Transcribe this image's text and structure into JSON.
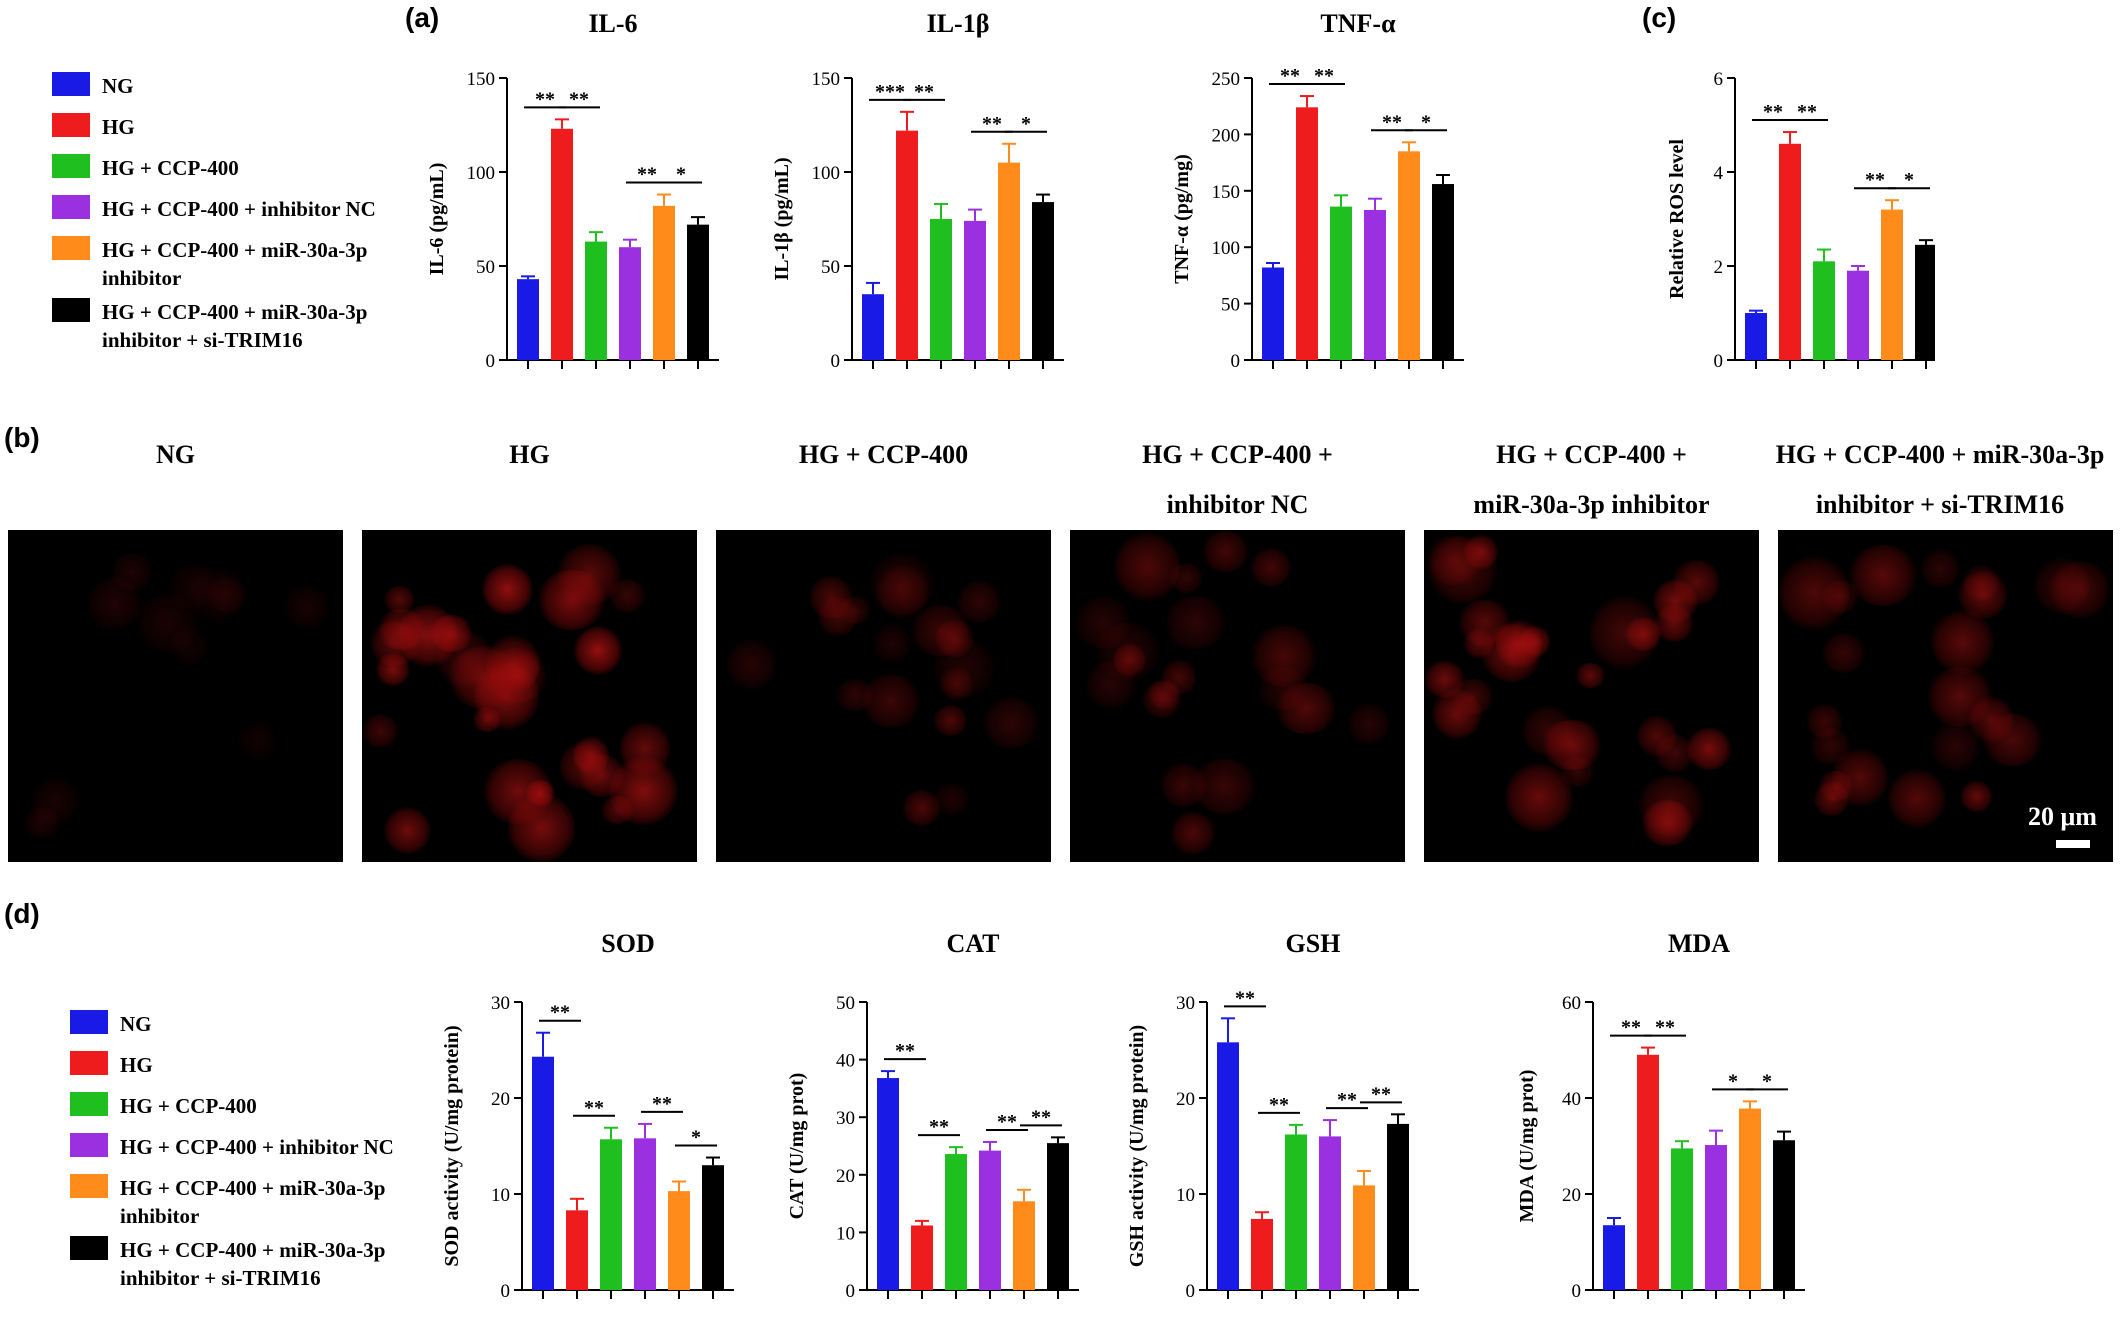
{
  "panel_labels": {
    "a": "(a)",
    "b": "(b)",
    "c": "(c)",
    "d": "(d)"
  },
  "colors": {
    "NG": "#1a1ae6",
    "HG": "#ee1c1c",
    "CCP": "#1fbf1f",
    "NC": "#9b30e0",
    "miR": "#ff8c1a",
    "si": "#000000"
  },
  "legend": {
    "items": [
      {
        "label": "NG",
        "color": "#1a1ae6"
      },
      {
        "label": "HG",
        "color": "#ee1c1c"
      },
      {
        "label": "HG + CCP-400",
        "color": "#1fbf1f"
      },
      {
        "label": "HG + CCP-400 + inhibitor NC",
        "color": "#9b30e0"
      },
      {
        "label": "HG + CCP-400 + miR-30a-3p inhibitor",
        "color": "#ff8c1a"
      },
      {
        "label": "HG + CCP-400 + miR-30a-3p inhibitor + si-TRIM16",
        "color": "#000000"
      }
    ]
  },
  "chart_data": [
    {
      "id": "il6",
      "type": "bar",
      "title": "IL-6",
      "ylabel": "IL-6 (pg/mL)",
      "ylim": [
        0,
        150
      ],
      "yticks": [
        0,
        50,
        100,
        150
      ],
      "values": [
        43,
        123,
        63,
        60,
        82,
        72
      ],
      "errors": [
        1.5,
        5,
        5,
        4,
        6,
        4
      ],
      "sig": [
        {
          "from": 0,
          "to": 1,
          "label": "**"
        },
        {
          "from": 1,
          "to": 2,
          "label": "**"
        },
        {
          "from": 3,
          "to": 4,
          "label": "**"
        },
        {
          "from": 4,
          "to": 5,
          "label": "*"
        }
      ]
    },
    {
      "id": "il1b",
      "type": "bar",
      "title": "IL-1β",
      "ylabel": "IL-1β (pg/mL)",
      "ylim": [
        0,
        150
      ],
      "yticks": [
        0,
        50,
        100,
        150
      ],
      "values": [
        35,
        122,
        75,
        74,
        105,
        84
      ],
      "errors": [
        6,
        10,
        8,
        6,
        10,
        4
      ],
      "sig": [
        {
          "from": 0,
          "to": 1,
          "label": "***"
        },
        {
          "from": 1,
          "to": 2,
          "label": "**"
        },
        {
          "from": 3,
          "to": 4,
          "label": "**"
        },
        {
          "from": 4,
          "to": 5,
          "label": "*"
        }
      ]
    },
    {
      "id": "tnfa",
      "type": "bar",
      "title": "TNF-α",
      "ylabel": "TNF-α (pg/mg)",
      "ylim": [
        0,
        250
      ],
      "yticks": [
        0,
        50,
        100,
        150,
        200,
        250
      ],
      "values": [
        82,
        224,
        136,
        133,
        185,
        156
      ],
      "errors": [
        4,
        10,
        10,
        10,
        8,
        8
      ],
      "sig": [
        {
          "from": 0,
          "to": 1,
          "label": "**"
        },
        {
          "from": 1,
          "to": 2,
          "label": "**"
        },
        {
          "from": 3,
          "to": 4,
          "label": "**"
        },
        {
          "from": 4,
          "to": 5,
          "label": "*"
        }
      ]
    },
    {
      "id": "ros",
      "type": "bar",
      "title": "",
      "ylabel": "Relative ROS  level",
      "ylim": [
        0,
        6
      ],
      "yticks": [
        0,
        2,
        4,
        6
      ],
      "values": [
        1.0,
        4.6,
        2.1,
        1.9,
        3.2,
        2.45
      ],
      "errors": [
        0.05,
        0.25,
        0.25,
        0.1,
        0.2,
        0.1
      ],
      "sig": [
        {
          "from": 0,
          "to": 1,
          "label": "**"
        },
        {
          "from": 1,
          "to": 2,
          "label": "**"
        },
        {
          "from": 3,
          "to": 4,
          "label": "**"
        },
        {
          "from": 4,
          "to": 5,
          "label": "*"
        }
      ]
    },
    {
      "id": "sod",
      "type": "bar",
      "title": "SOD",
      "ylabel": "SOD activity (U/mg protein)",
      "ylim": [
        0,
        30
      ],
      "yticks": [
        0,
        10,
        20,
        30
      ],
      "values": [
        24.3,
        8.3,
        15.7,
        15.8,
        10.3,
        13.0
      ],
      "errors": [
        2.5,
        1.2,
        1.2,
        1.5,
        1.0,
        0.8
      ],
      "sig": [
        {
          "from": 0,
          "to": 1,
          "label": "**"
        },
        {
          "from": 1,
          "to": 2,
          "label": "**"
        },
        {
          "from": 3,
          "to": 4,
          "label": "**"
        },
        {
          "from": 4,
          "to": 5,
          "label": "*"
        }
      ]
    },
    {
      "id": "cat",
      "type": "bar",
      "title": "CAT",
      "ylabel": "CAT (U/mg prot)",
      "ylim": [
        0,
        50
      ],
      "yticks": [
        0,
        10,
        20,
        30,
        40,
        50
      ],
      "values": [
        36.8,
        11.2,
        23.6,
        24.2,
        15.4,
        25.5
      ],
      "errors": [
        1.2,
        0.8,
        1.2,
        1.5,
        2.0,
        1.0
      ],
      "sig": [
        {
          "from": 0,
          "to": 1,
          "label": "**"
        },
        {
          "from": 1,
          "to": 2,
          "label": "**"
        },
        {
          "from": 3,
          "to": 4,
          "label": "**"
        },
        {
          "from": 4,
          "to": 5,
          "label": "**"
        }
      ]
    },
    {
      "id": "gsh",
      "type": "bar",
      "title": "GSH",
      "ylabel": "GSH activity (U/mg protein)",
      "ylim": [
        0,
        30
      ],
      "yticks": [
        0,
        10,
        20,
        30
      ],
      "values": [
        25.8,
        7.4,
        16.2,
        16.0,
        10.9,
        17.3
      ],
      "errors": [
        2.5,
        0.7,
        1.0,
        1.7,
        1.5,
        1.0
      ],
      "sig": [
        {
          "from": 0,
          "to": 1,
          "label": "**"
        },
        {
          "from": 1,
          "to": 2,
          "label": "**"
        },
        {
          "from": 3,
          "to": 4,
          "label": "**"
        },
        {
          "from": 4,
          "to": 5,
          "label": "**"
        }
      ]
    },
    {
      "id": "mda",
      "type": "bar",
      "title": "MDA",
      "ylabel": "MDA (U/mg prot)",
      "ylim": [
        0,
        60
      ],
      "yticks": [
        0,
        20,
        40,
        60
      ],
      "values": [
        13.5,
        49.0,
        29.5,
        30.2,
        37.8,
        31.2
      ],
      "errors": [
        1.5,
        1.5,
        1.5,
        3.0,
        1.5,
        1.8
      ],
      "sig": [
        {
          "from": 0,
          "to": 1,
          "label": "**"
        },
        {
          "from": 1,
          "to": 2,
          "label": "**"
        },
        {
          "from": 3,
          "to": 4,
          "label": "*"
        },
        {
          "from": 4,
          "to": 5,
          "label": "*"
        }
      ]
    }
  ],
  "images": {
    "titles": [
      {
        "line1": "",
        "line2": "NG"
      },
      {
        "line1": "",
        "line2": "HG"
      },
      {
        "line1": "",
        "line2": "HG + CCP-400"
      },
      {
        "line1": "HG + CCP-400 +",
        "line2": "inhibitor NC"
      },
      {
        "line1": "HG + CCP-400 +",
        "line2": "miR-30a-3p inhibitor"
      },
      {
        "line1": "HG + CCP-400 + miR-30a-3p",
        "line2": "inhibitor + si-TRIM16"
      }
    ],
    "intensity": [
      0.15,
      0.95,
      0.45,
      0.5,
      0.8,
      0.6
    ],
    "scale_bar": "20 μm"
  }
}
